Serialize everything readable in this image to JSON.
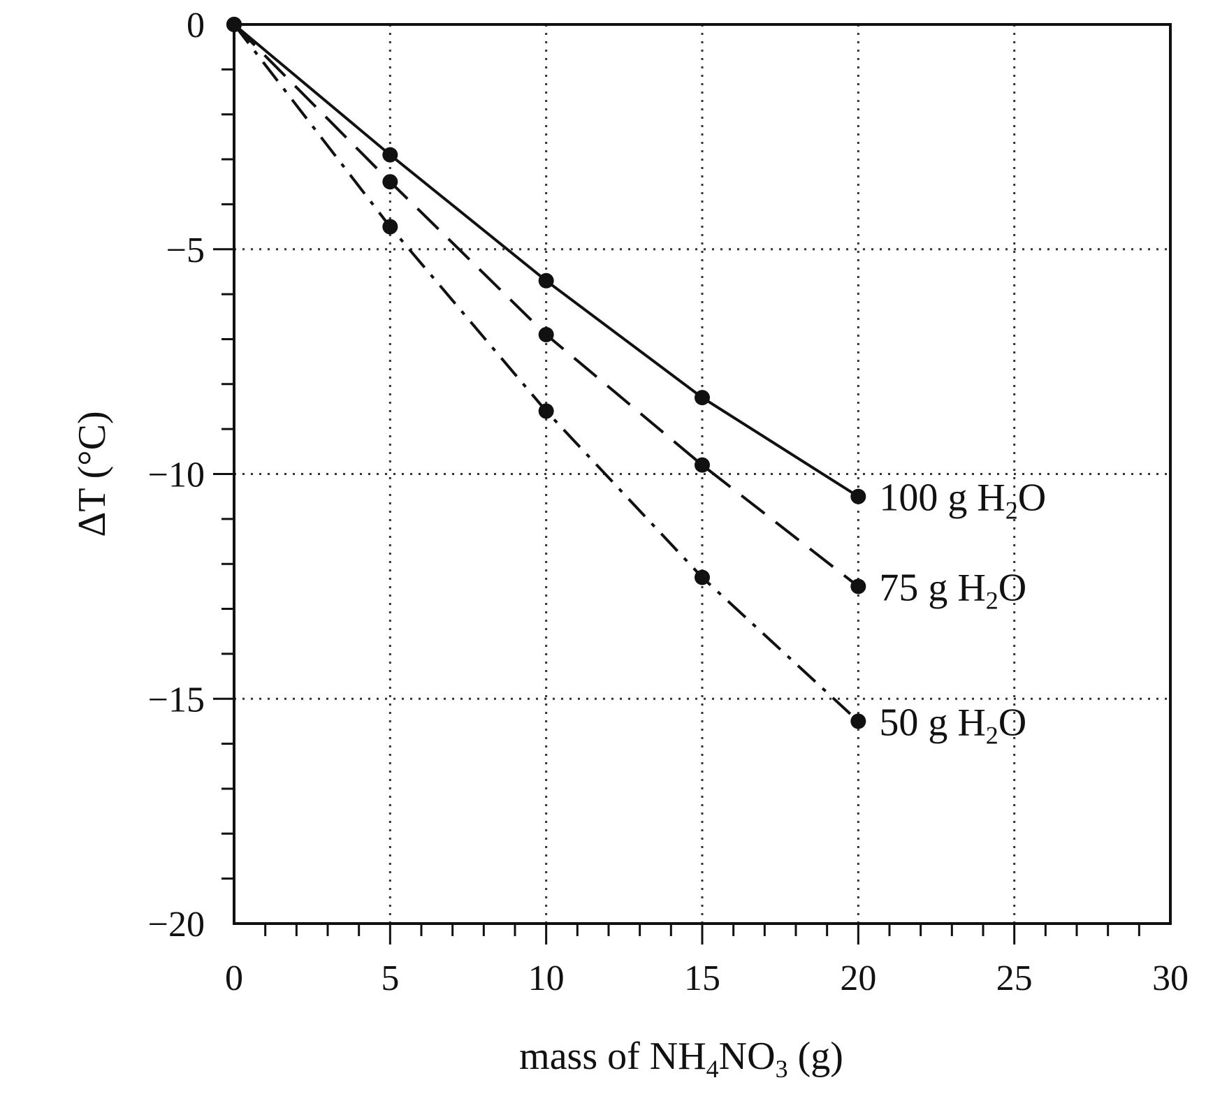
{
  "chart_data": {
    "type": "line",
    "title": "",
    "xlabel": {
      "parts": [
        {
          "text": "mass of NH"
        },
        {
          "text": "4",
          "sub": true
        },
        {
          "text": "NO"
        },
        {
          "text": "3",
          "sub": true
        },
        {
          "text": " (g)"
        }
      ]
    },
    "ylabel": {
      "parts": [
        {
          "text": "ΔT (°C)"
        }
      ]
    },
    "xlim": [
      0,
      30
    ],
    "ylim": [
      -20,
      0
    ],
    "x_ticks": [
      0,
      5,
      10,
      15,
      20,
      25,
      30
    ],
    "x_tick_labels": [
      "0",
      "5",
      "10",
      "15",
      "20",
      "25",
      "30"
    ],
    "y_ticks": [
      0,
      -5,
      -10,
      -15,
      -20
    ],
    "y_tick_labels": [
      "0",
      "−5",
      "−10",
      "−15",
      "−20"
    ],
    "grid": true,
    "legend": "labels at line ends",
    "series": [
      {
        "name": {
          "parts": [
            {
              "text": "100 g H"
            },
            {
              "text": "2",
              "sub": true
            },
            {
              "text": "O"
            }
          ]
        },
        "style": "solid",
        "x": [
          0,
          5,
          10,
          15,
          20
        ],
        "y": [
          0,
          -2.9,
          -5.7,
          -8.3,
          -10.5
        ]
      },
      {
        "name": {
          "parts": [
            {
              "text": "75 g H"
            },
            {
              "text": "2",
              "sub": true
            },
            {
              "text": "O"
            }
          ]
        },
        "style": "dashed",
        "x": [
          0,
          5,
          10,
          15,
          20
        ],
        "y": [
          0,
          -3.5,
          -6.9,
          -9.8,
          -12.5
        ]
      },
      {
        "name": {
          "parts": [
            {
              "text": "50 g H"
            },
            {
              "text": "2",
              "sub": true
            },
            {
              "text": "O"
            }
          ]
        },
        "style": "dash-dot",
        "x": [
          0,
          5,
          10,
          15,
          20
        ],
        "y": [
          0,
          -4.5,
          -8.6,
          -12.3,
          -15.5
        ]
      }
    ]
  }
}
